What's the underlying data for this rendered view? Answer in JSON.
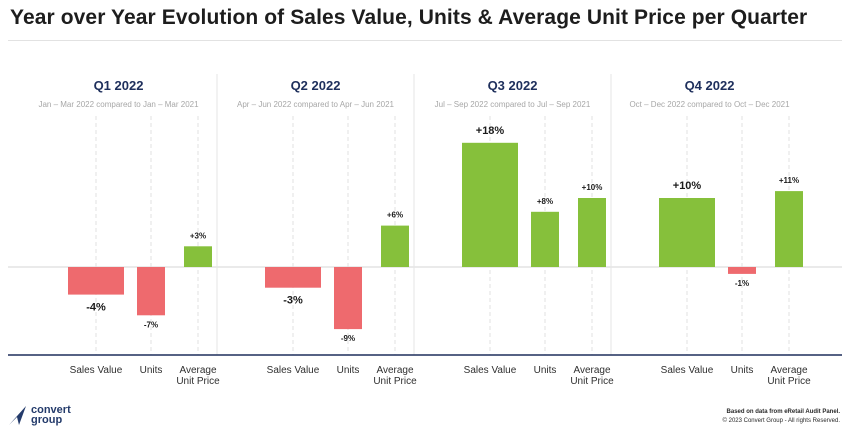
{
  "title": "Year over Year Evolution of Sales Value, Units & Average Unit Price per Quarter",
  "colors": {
    "positive": "#86c03b",
    "negative": "#ee6a6e",
    "quarter_title": "#1e2f5c",
    "baseline": "#1e2f5c",
    "subtitle": "#a7a7a7"
  },
  "chart_data": {
    "type": "bar",
    "categories": [
      "Sales Value",
      "Units",
      "Average Unit Price"
    ],
    "category_labels": [
      [
        "Sales Value"
      ],
      [
        "Units"
      ],
      [
        "Average",
        "Unit Price"
      ]
    ],
    "ylim": [
      -10,
      20
    ],
    "grid": false,
    "panels": [
      {
        "title": "Q1 2022",
        "subtitle": "Jan – Mar 2022 compared to Jan – Mar 2021",
        "values": [
          -4,
          -7,
          3
        ],
        "labels": [
          "-4%",
          "-7%",
          "+3%"
        ]
      },
      {
        "title": "Q2 2022",
        "subtitle": "Apr – Jun 2022 compared to Apr – Jun 2021",
        "values": [
          -3,
          -9,
          6
        ],
        "labels": [
          "-3%",
          "-9%",
          "+6%"
        ]
      },
      {
        "title": "Q3 2022",
        "subtitle": "Jul – Sep 2022 compared to Jul – Sep 2021",
        "values": [
          18,
          8,
          10
        ],
        "labels": [
          "+18%",
          "+8%",
          "+10%"
        ]
      },
      {
        "title": "Q4 2022",
        "subtitle": "Oct – Dec 2022 compared to Oct – Dec 2021",
        "values": [
          10,
          -1,
          11
        ],
        "labels": [
          "+10%",
          "-1%",
          "+11%"
        ]
      }
    ]
  },
  "footer": {
    "source": "Based on data from eRetail Audit Panel.",
    "copyright": "© 2023 Convert Group - All rights Reserved."
  },
  "logo": {
    "line1": "convert",
    "line2": "group",
    "icon": "arrow-pointer-icon"
  }
}
